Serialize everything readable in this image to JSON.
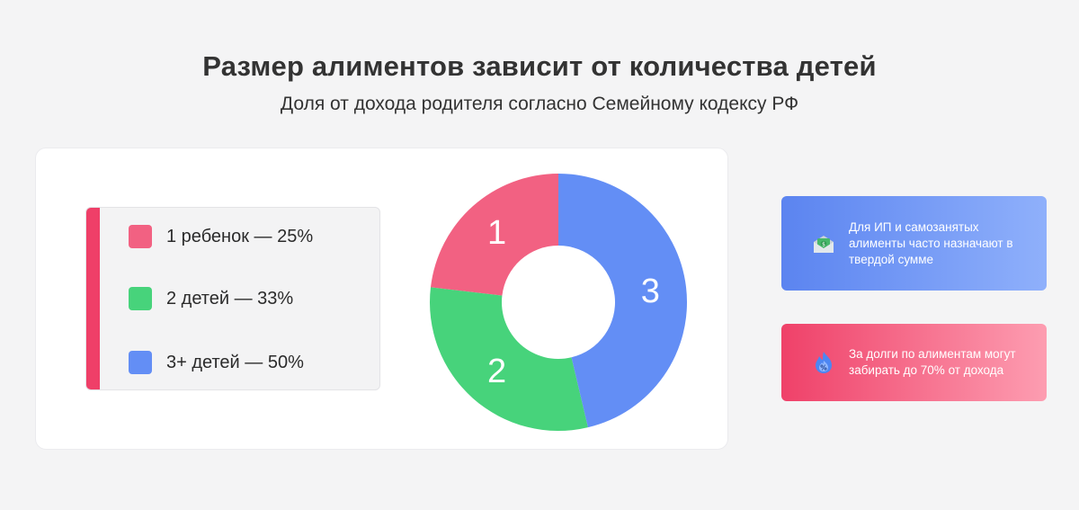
{
  "header": {
    "title": "Размер алиментов зависит от количества детей",
    "subtitle": "Доля от дохода родителя согласно Семейному кодексу РФ"
  },
  "legend": {
    "items": [
      {
        "label": "1 ребенок — 25%",
        "color": "#f26182"
      },
      {
        "label": "2 детей — 33%",
        "color": "#47d37b"
      },
      {
        "label": "3+ детей — 50%",
        "color": "#638ef5"
      }
    ],
    "accent_color": "#ef3f68"
  },
  "chart_data": {
    "type": "pie",
    "variant": "donut",
    "categories": [
      "1",
      "2",
      "3"
    ],
    "values": [
      25,
      33,
      50
    ],
    "slice_labels": [
      "1",
      "2",
      "3"
    ],
    "colors": [
      "#f26182",
      "#47d37b",
      "#638ef5"
    ],
    "start": "top",
    "direction": "counterclockwise"
  },
  "info_cards": [
    {
      "text": "Для ИП и самозанятых алименты часто назначают в твердой сумме",
      "icon": "money-envelope-icon",
      "gradient": [
        "#5b84f0",
        "#8fb0fb"
      ]
    },
    {
      "text": "За долги по алиментам могут забирать до 70% от дохода",
      "icon": "percent-flame-icon",
      "gradient": [
        "#ef4169",
        "#fd9db1"
      ]
    }
  ]
}
